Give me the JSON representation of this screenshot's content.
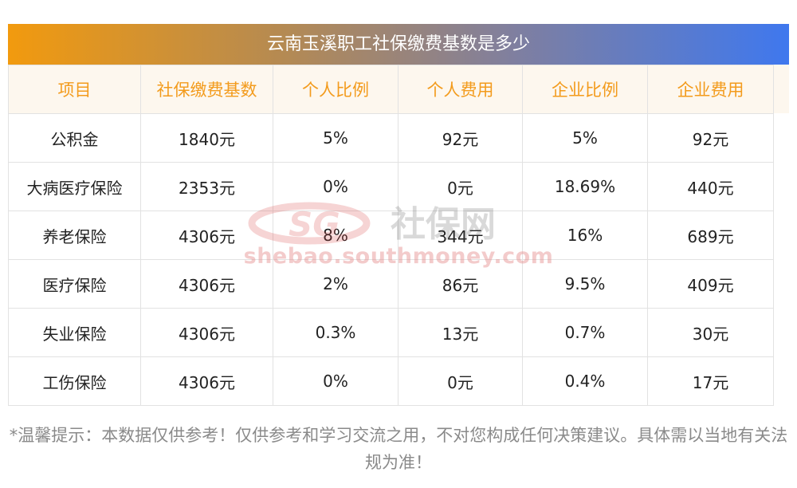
{
  "title": "云南玉溪职工社保缴费基数是多少",
  "columns": [
    "项目",
    "社保缴费基数",
    "个人比例",
    "个人费用",
    "企业比例",
    "企业费用"
  ],
  "rows": [
    [
      "公积金",
      "1840元",
      "5%",
      "92元",
      "5%",
      "92元"
    ],
    [
      "大病医疗保险",
      "2353元",
      "0%",
      "0元",
      "18.69%",
      "440元"
    ],
    [
      "养老保险",
      "4306元",
      "8%",
      "344元",
      "16%",
      "689元"
    ],
    [
      "医疗保险",
      "4306元",
      "2%",
      "86元",
      "9.5%",
      "409元"
    ],
    [
      "失业保险",
      "4306元",
      "0.3%",
      "13元",
      "0.7%",
      "30元"
    ],
    [
      "工伤保险",
      "4306元",
      "0%",
      "0元",
      "0.4%",
      "17元"
    ]
  ],
  "watermark": {
    "logo_text": "SG",
    "brand": "社保网",
    "url": "shebao.southmoney.com"
  },
  "notice": "*温馨提示：本数据仅供参考！仅供参考和学习交流之用，不对您构成任何决策建议。具体需以当地有关法规为准！",
  "colors": {
    "header_text": "#f39b1c",
    "header_bg": "#fdf7ee",
    "title_gradient": [
      "#f29a0e",
      "#3f78ee"
    ],
    "watermark": "#d94040"
  }
}
